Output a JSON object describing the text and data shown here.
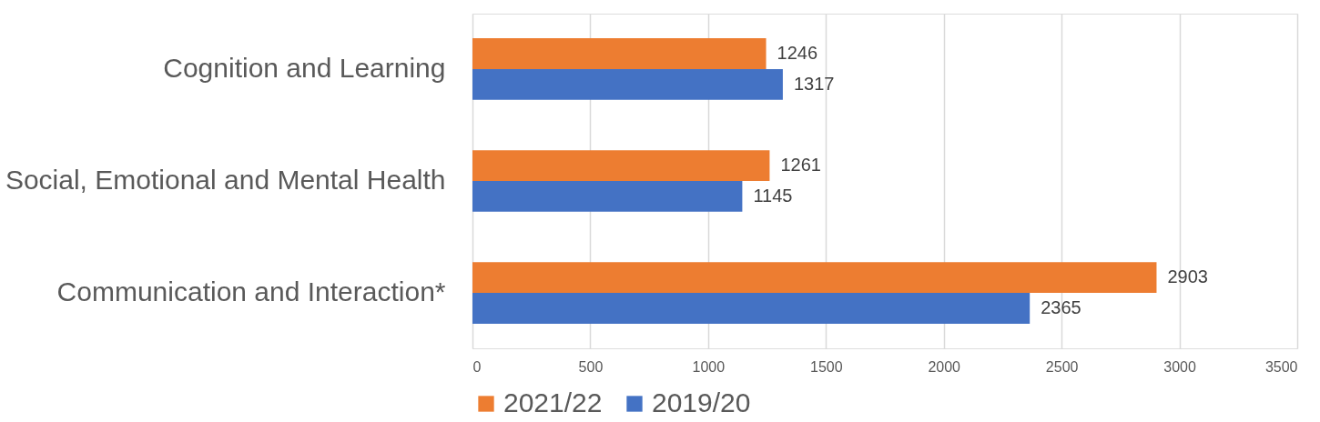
{
  "chart_data": {
    "type": "bar",
    "orientation": "horizontal",
    "categories": [
      "Cognition and Learning",
      "Social, Emotional and Mental Health",
      "Communication and Interaction*"
    ],
    "series": [
      {
        "name": "2021/22",
        "color": "#ed7d31",
        "values": [
          1246,
          1261,
          2903
        ]
      },
      {
        "name": "2019/20",
        "color": "#4472c4",
        "values": [
          1317,
          1145,
          2365
        ]
      }
    ],
    "xlim": [
      0,
      3500
    ],
    "xticks": [
      0,
      500,
      1000,
      1500,
      2000,
      2500,
      3000,
      3500
    ],
    "grid": "x",
    "legend": "bottom",
    "data_labels": true
  }
}
